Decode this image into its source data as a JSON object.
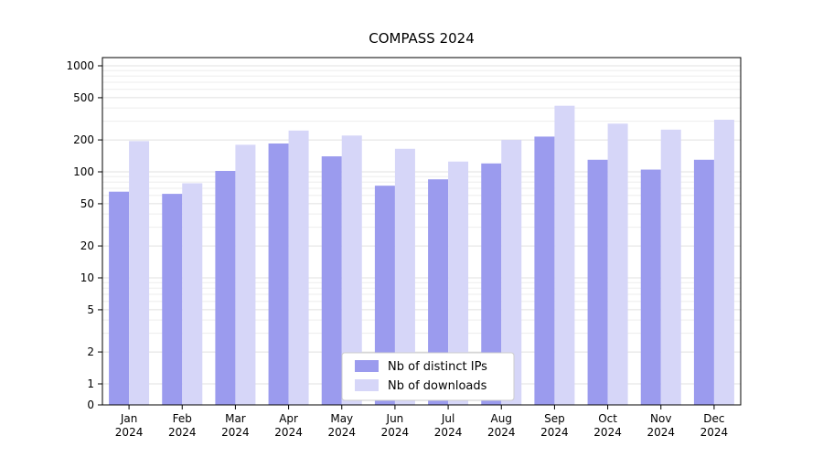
{
  "chart_data": {
    "type": "bar",
    "title": "COMPASS 2024",
    "xlabel": "",
    "ylabel": "",
    "scale": "symlog",
    "ylim": [
      0,
      1000
    ],
    "y_ticks": [
      0,
      1,
      2,
      5,
      10,
      20,
      50,
      100,
      200,
      500,
      1000
    ],
    "grid": "on",
    "legend_position": "lower center",
    "categories": [
      "Jan",
      "Feb",
      "Mar",
      "Apr",
      "May",
      "Jun",
      "Jul",
      "Aug",
      "Sep",
      "Oct",
      "Nov",
      "Dec"
    ],
    "category_year": "2024",
    "series": [
      {
        "name": "Nb of distinct IPs",
        "color": "#9b9bee",
        "values": [
          65,
          62,
          102,
          185,
          140,
          74,
          85,
          120,
          215,
          130,
          105,
          130
        ]
      },
      {
        "name": "Nb of downloads",
        "color": "#d6d6f8",
        "values": [
          195,
          78,
          180,
          245,
          220,
          165,
          125,
          200,
          420,
          285,
          250,
          310
        ]
      }
    ]
  },
  "colors": {
    "grid_major": "#e0e0e0",
    "grid_minor": "#ededed",
    "axis": "#000000",
    "legend_border": "#cccccc",
    "legend_bg": "#ffffff"
  }
}
